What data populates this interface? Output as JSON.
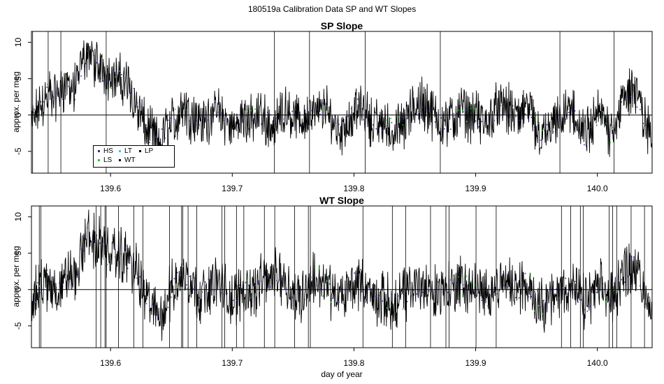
{
  "figure": {
    "title": "180519a   Calibration Data SP and WT Slopes",
    "xlabel": "day of year"
  },
  "legend": {
    "items": [
      {
        "label": "HS",
        "color": "#2d2d9e"
      },
      {
        "label": "LT",
        "color": "#33cccc"
      },
      {
        "label": "LP",
        "color": "#000000"
      },
      {
        "label": "LS",
        "color": "#22cc22"
      },
      {
        "label": "WT",
        "color": "#000000"
      }
    ]
  },
  "chart_data": [
    {
      "type": "line",
      "title": "SP Slope",
      "xlabel": "",
      "ylabel": "approx. per meg",
      "xlim": [
        139.535,
        140.045
      ],
      "ylim": [
        -8,
        11.5
      ],
      "xticks": [
        "139.6",
        "139.7",
        "139.8",
        "139.9",
        "140.0"
      ],
      "xtick_values": [
        139.6,
        139.7,
        139.8,
        139.9,
        140.0
      ],
      "yticks": [
        "-5",
        "0",
        "5",
        "10"
      ],
      "ytick_values": [
        -5,
        0,
        5,
        10
      ],
      "hline": 0,
      "legend_position": "bottom-left",
      "series": [
        {
          "color": "#000000",
          "x": [
            139.535,
            139.54,
            139.545,
            139.55,
            139.555,
            139.56,
            139.565,
            139.57,
            139.575,
            139.58,
            139.585,
            139.59,
            139.595,
            139.6,
            139.605,
            139.61,
            139.615,
            139.62,
            139.625,
            139.63,
            139.635,
            139.64,
            139.645,
            139.65,
            139.655,
            139.66,
            139.665,
            139.67,
            139.675,
            139.68,
            139.685,
            139.69,
            139.695,
            139.7,
            139.705,
            139.71,
            139.715,
            139.72,
            139.725,
            139.73,
            139.735,
            139.74,
            139.745,
            139.75,
            139.755,
            139.76,
            139.765,
            139.77,
            139.775,
            139.78,
            139.785,
            139.79,
            139.795,
            139.8,
            139.805,
            139.81,
            139.815,
            139.82,
            139.825,
            139.83,
            139.835,
            139.84,
            139.845,
            139.85,
            139.855,
            139.86,
            139.865,
            139.87,
            139.875,
            139.88,
            139.885,
            139.89,
            139.895,
            139.9,
            139.905,
            139.91,
            139.915,
            139.92,
            139.925,
            139.93,
            139.935,
            139.94,
            139.945,
            139.95,
            139.955,
            139.96,
            139.965,
            139.97,
            139.975,
            139.98,
            139.985,
            139.99,
            139.995,
            140.0,
            140.005,
            140.01,
            140.015,
            140.02,
            140.025,
            140.03,
            140.035,
            140.04,
            140.045
          ],
          "values": [
            -1.0,
            0.5,
            2.0,
            3.0,
            2.5,
            3.5,
            4.0,
            3.0,
            6.0,
            8.5,
            8.0,
            6.0,
            6.0,
            5.5,
            5.0,
            4.5,
            4.0,
            2.0,
            0.0,
            -2.0,
            -3.0,
            -4.0,
            -2.0,
            -1.0,
            0.0,
            1.0,
            0.0,
            -0.5,
            -1.0,
            -0.5,
            0.5,
            0.0,
            -1.0,
            -2.0,
            -1.0,
            0.0,
            -1.0,
            -0.5,
            0.0,
            -1.0,
            -1.5,
            0.5,
            1.0,
            0.0,
            -1.0,
            -0.5,
            0.0,
            0.0,
            1.0,
            0.0,
            -1.5,
            -2.0,
            -1.0,
            0.5,
            1.0,
            0.0,
            -1.0,
            -1.5,
            -1.0,
            -2.0,
            -2.0,
            -1.5,
            0.0,
            1.0,
            1.5,
            1.0,
            0.0,
            -0.5,
            -1.0,
            -1.0,
            0.0,
            0.5,
            0.0,
            0.0,
            -1.0,
            -1.0,
            0.5,
            1.0,
            1.0,
            0.0,
            -0.5,
            0.5,
            0.0,
            -2.0,
            -3.0,
            -2.0,
            -1.5,
            -1.0,
            0.0,
            0.5,
            -1.5,
            -3.0,
            -2.0,
            0.0,
            0.0,
            -2.0,
            -1.0,
            1.5,
            3.0,
            4.0,
            1.0,
            -1.5,
            -3.0
          ],
          "spread": 2.8
        }
      ]
    },
    {
      "type": "line",
      "title": "WT Slope",
      "xlabel": "day of year",
      "ylabel": "approx. per meg",
      "xlim": [
        139.535,
        140.045
      ],
      "ylim": [
        -8,
        11.5
      ],
      "xticks": [
        "139.6",
        "139.7",
        "139.8",
        "139.9",
        "140.0"
      ],
      "xtick_values": [
        139.6,
        139.7,
        139.8,
        139.9,
        140.0
      ],
      "yticks": [
        "-5",
        "0",
        "5",
        "10"
      ],
      "ytick_values": [
        -5,
        0,
        5,
        10
      ],
      "hline": 0,
      "series": [
        {
          "color": "#000000",
          "x": [
            139.535,
            139.54,
            139.545,
            139.55,
            139.555,
            139.56,
            139.565,
            139.57,
            139.575,
            139.58,
            139.585,
            139.59,
            139.595,
            139.6,
            139.605,
            139.61,
            139.615,
            139.62,
            139.625,
            139.63,
            139.635,
            139.64,
            139.645,
            139.65,
            139.655,
            139.66,
            139.665,
            139.67,
            139.675,
            139.68,
            139.685,
            139.69,
            139.695,
            139.7,
            139.705,
            139.71,
            139.715,
            139.72,
            139.725,
            139.73,
            139.735,
            139.74,
            139.745,
            139.75,
            139.755,
            139.76,
            139.765,
            139.77,
            139.775,
            139.78,
            139.785,
            139.79,
            139.795,
            139.8,
            139.805,
            139.81,
            139.815,
            139.82,
            139.825,
            139.83,
            139.835,
            139.84,
            139.845,
            139.85,
            139.855,
            139.86,
            139.865,
            139.87,
            139.875,
            139.88,
            139.885,
            139.89,
            139.895,
            139.9,
            139.905,
            139.91,
            139.915,
            139.92,
            139.925,
            139.93,
            139.935,
            139.94,
            139.945,
            139.95,
            139.955,
            139.96,
            139.965,
            139.97,
            139.975,
            139.98,
            139.985,
            139.99,
            139.995,
            140.0,
            140.005,
            140.01,
            140.015,
            140.02,
            140.025,
            140.03,
            140.035,
            140.04,
            140.045
          ],
          "values": [
            -1.0,
            0.0,
            1.0,
            0.5,
            0.0,
            1.0,
            2.0,
            1.0,
            4.0,
            7.5,
            7.0,
            6.0,
            5.5,
            5.0,
            4.5,
            4.5,
            4.0,
            3.0,
            0.5,
            -1.5,
            -2.5,
            -4.0,
            -2.0,
            0.0,
            1.0,
            2.0,
            1.0,
            0.0,
            -1.0,
            0.0,
            1.0,
            0.5,
            -0.5,
            -1.5,
            -1.0,
            0.5,
            0.0,
            0.0,
            1.0,
            1.5,
            2.0,
            2.0,
            1.0,
            -1.0,
            -1.0,
            0.0,
            1.0,
            1.5,
            1.0,
            0.0,
            -1.0,
            -1.0,
            0.0,
            1.0,
            1.5,
            0.0,
            -1.0,
            -1.5,
            -1.5,
            -2.0,
            -2.5,
            -1.0,
            0.0,
            0.5,
            0.5,
            0.0,
            -1.0,
            0.0,
            0.5,
            0.5,
            1.0,
            1.0,
            0.0,
            0.0,
            -1.0,
            -1.0,
            0.5,
            1.0,
            1.0,
            0.5,
            0.0,
            1.0,
            0.0,
            -1.5,
            -2.0,
            -1.5,
            -1.0,
            0.0,
            0.5,
            0.0,
            -1.0,
            -2.0,
            -1.0,
            0.0,
            0.0,
            -1.0,
            0.0,
            2.0,
            3.0,
            3.5,
            1.0,
            -1.0,
            -2.5
          ],
          "spread": 3.0
        }
      ]
    }
  ]
}
